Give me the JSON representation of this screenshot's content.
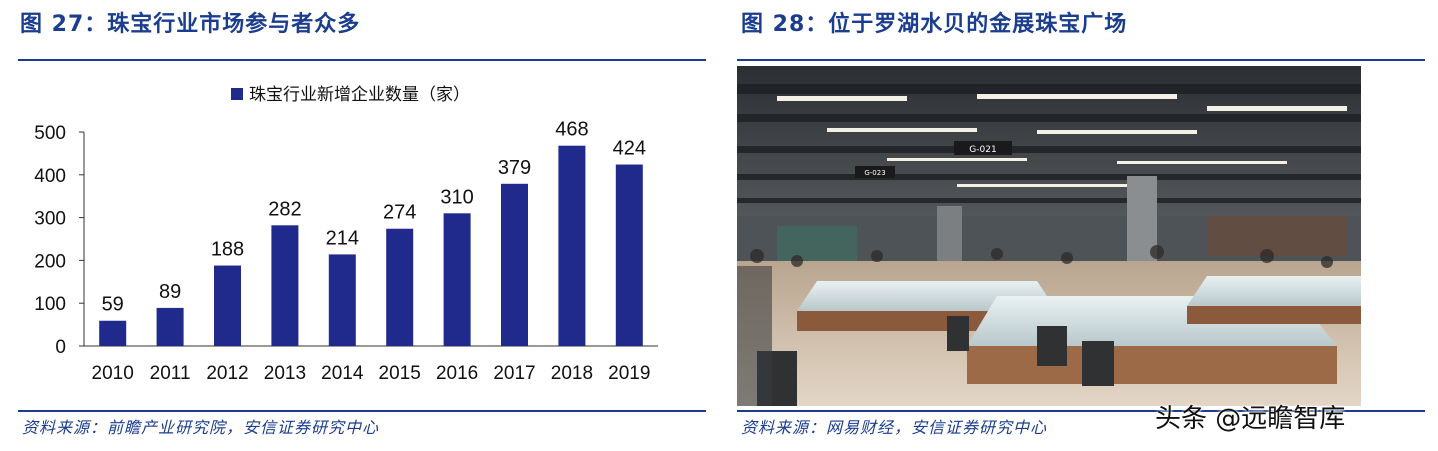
{
  "left": {
    "title": "图 27：珠宝行业市场参与者众多",
    "source": "资料来源：前瞻产业研究院，安信证券研究中心"
  },
  "right": {
    "title": "图 28：位于罗湖水贝的金展珠宝广场",
    "source": "资料来源：网易财经，安信证券研究中心",
    "photo_signs": [
      "G-021",
      "G-023"
    ]
  },
  "watermark": "头条 @远瞻智库",
  "colors": {
    "accent": "#1a3d8f",
    "bar": "#1f2a8c"
  },
  "chart_data": {
    "type": "bar",
    "categories": [
      "2010",
      "2011",
      "2012",
      "2013",
      "2014",
      "2015",
      "2016",
      "2017",
      "2018",
      "2019"
    ],
    "series": [
      {
        "name": "珠宝行业新增企业数量（家）",
        "values": [
          59,
          89,
          188,
          282,
          214,
          274,
          310,
          379,
          468,
          424
        ]
      }
    ],
    "ylim": [
      0,
      500
    ],
    "yticks": [
      0,
      100,
      200,
      300,
      400,
      500
    ],
    "grid": false,
    "legend": "top",
    "data_labels": true
  }
}
